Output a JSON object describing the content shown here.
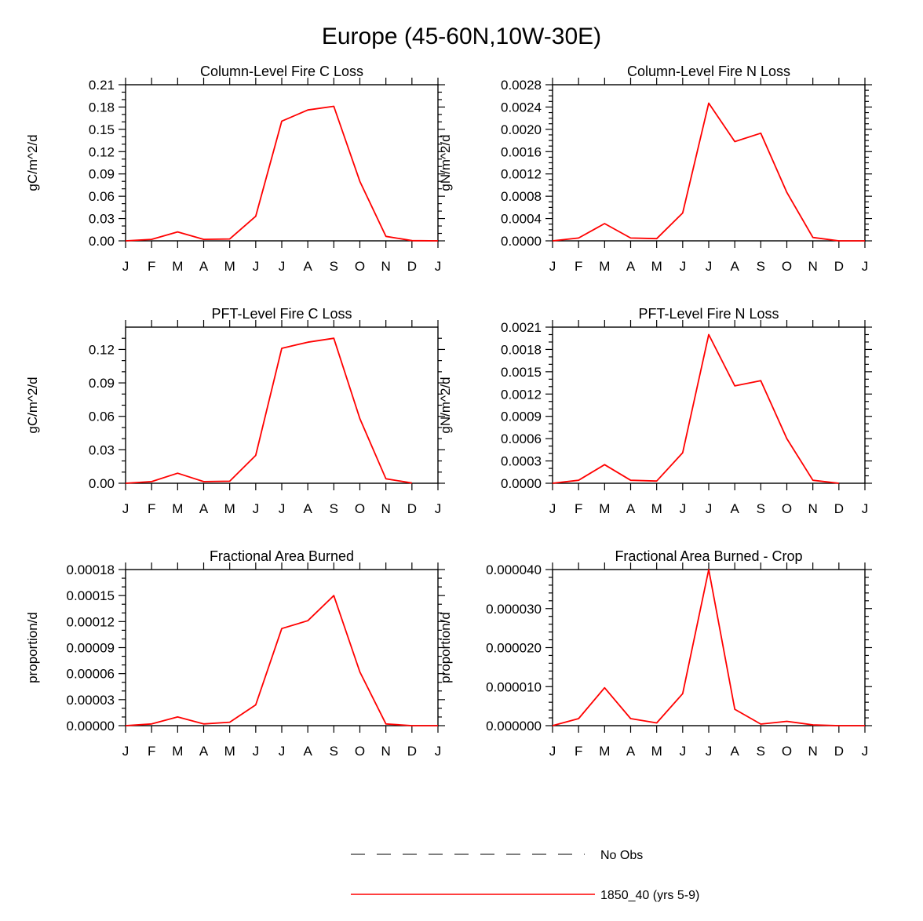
{
  "figure": {
    "title": "Europe (45-60N,10W-30E)"
  },
  "colors": {
    "model_line": "#ff0000",
    "obs_line": "#555555",
    "axes": "#000000"
  },
  "legend": {
    "items": [
      {
        "label": "No Obs",
        "style": "dashed",
        "color": "#555555"
      },
      {
        "label": "1850_40 (yrs 5-9)",
        "style": "solid",
        "color": "#ff0000"
      }
    ]
  },
  "chart_data": [
    {
      "type": "line",
      "title": "Column-Level Fire C Loss",
      "ylabel": "gC/m^2/d",
      "categories": [
        "J",
        "F",
        "M",
        "A",
        "M",
        "J",
        "J",
        "A",
        "S",
        "O",
        "N",
        "D",
        "J"
      ],
      "ylim": [
        0,
        0.21
      ],
      "yticks": [
        "0.00",
        "0.03",
        "0.06",
        "0.09",
        "0.12",
        "0.15",
        "0.18",
        "0.21"
      ],
      "y_minor_per_major": 2,
      "series": [
        {
          "values": [
            0.0,
            0.002,
            0.012,
            0.002,
            0.0025,
            0.033,
            0.161,
            0.176,
            0.181,
            0.08,
            0.006,
            0.0003,
            0.0
          ]
        }
      ]
    },
    {
      "type": "line",
      "title": "Column-Level Fire N Loss",
      "ylabel": "gN/m^2/d",
      "categories": [
        "J",
        "F",
        "M",
        "A",
        "M",
        "J",
        "J",
        "A",
        "S",
        "O",
        "N",
        "D",
        "J"
      ],
      "ylim": [
        0,
        0.0028
      ],
      "yticks": [
        "0.0000",
        "0.0004",
        "0.0008",
        "0.0012",
        "0.0016",
        "0.0020",
        "0.0024",
        "0.0028"
      ],
      "y_minor_per_major": 3,
      "series": [
        {
          "values": [
            0.0,
            5e-05,
            0.00031,
            5e-05,
            4e-05,
            0.0005,
            0.00247,
            0.00178,
            0.00193,
            0.00087,
            6e-05,
            0.0,
            0.0
          ]
        }
      ]
    },
    {
      "type": "line",
      "title": "PFT-Level Fire C Loss",
      "ylabel": "gC/m^2/d",
      "categories": [
        "J",
        "F",
        "M",
        "A",
        "M",
        "J",
        "J",
        "A",
        "S",
        "O",
        "N",
        "D",
        "J"
      ],
      "ylim": [
        0,
        0.14
      ],
      "yticks": [
        "0.00",
        "0.03",
        "0.06",
        "0.09",
        "0.12"
      ],
      "y_minor_per_major": 2,
      "series": [
        {
          "values": [
            0.0,
            0.0015,
            0.009,
            0.0015,
            0.0018,
            0.025,
            0.121,
            0.1265,
            0.13,
            0.058,
            0.004,
            0.0002,
            null
          ]
        }
      ]
    },
    {
      "type": "line",
      "title": "PFT-Level Fire N Loss",
      "ylabel": "gN/m^2/d",
      "categories": [
        "J",
        "F",
        "M",
        "A",
        "M",
        "J",
        "J",
        "A",
        "S",
        "O",
        "N",
        "D",
        "J"
      ],
      "ylim": [
        0,
        0.0021
      ],
      "yticks": [
        "0.0000",
        "0.0003",
        "0.0006",
        "0.0009",
        "0.0012",
        "0.0015",
        "0.0018",
        "0.0021"
      ],
      "y_minor_per_major": 2,
      "series": [
        {
          "values": [
            0.0,
            4e-05,
            0.00025,
            4e-05,
            3e-05,
            0.00041,
            0.002,
            0.00131,
            0.00138,
            0.0006,
            4e-05,
            0.0,
            null
          ]
        }
      ]
    },
    {
      "type": "line",
      "title": "Fractional Area Burned",
      "ylabel": "proportion/d",
      "categories": [
        "J",
        "F",
        "M",
        "A",
        "M",
        "J",
        "J",
        "A",
        "S",
        "O",
        "N",
        "D",
        "J"
      ],
      "ylim": [
        0,
        0.00018
      ],
      "yticks": [
        "0.00000",
        "0.00003",
        "0.00006",
        "0.00009",
        "0.00012",
        "0.00015",
        "0.00018"
      ],
      "y_minor_per_major": 2,
      "series": [
        {
          "values": [
            0.0,
            2e-06,
            1e-05,
            2e-06,
            4e-06,
            2.4e-05,
            0.000112,
            0.000121,
            0.00015,
            6.2e-05,
            2e-06,
            0.0,
            0.0
          ]
        }
      ]
    },
    {
      "type": "line",
      "title": "Fractional Area Burned - Crop",
      "ylabel": "proportion/d",
      "categories": [
        "J",
        "F",
        "M",
        "A",
        "M",
        "J",
        "J",
        "A",
        "S",
        "O",
        "N",
        "D",
        "J"
      ],
      "ylim": [
        0,
        4e-05
      ],
      "yticks": [
        "0.000000",
        "0.000010",
        "0.000020",
        "0.000030",
        "0.000040"
      ],
      "y_minor_per_major": 4,
      "series": [
        {
          "values": [
            0.0,
            1.8e-06,
            9.7e-06,
            1.8e-06,
            7e-07,
            8.2e-06,
            4e-05,
            4.2e-06,
            4e-07,
            1.1e-06,
            2e-07,
            0.0,
            0.0
          ]
        }
      ]
    }
  ]
}
